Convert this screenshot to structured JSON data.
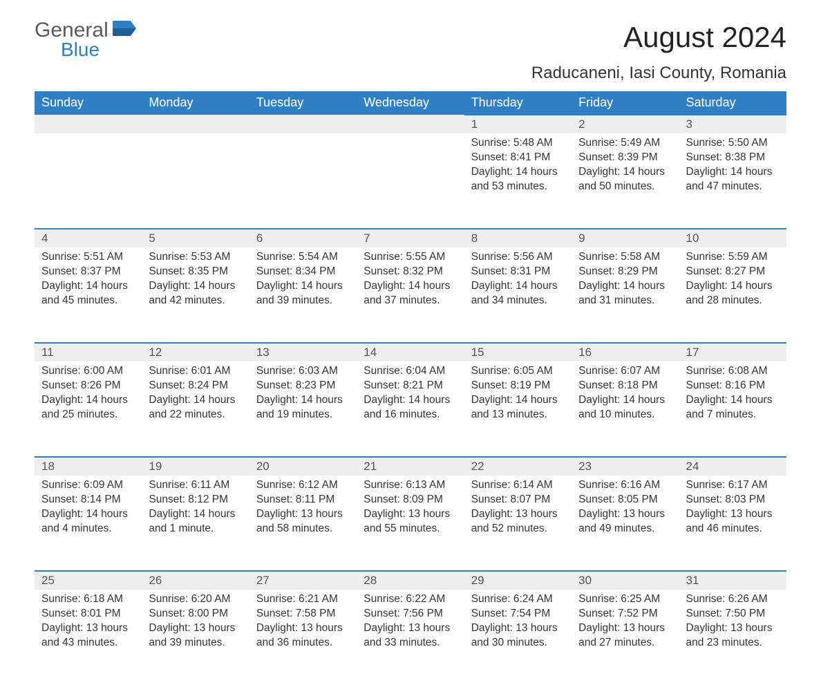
{
  "brand": {
    "part1": "General",
    "part2": "Blue"
  },
  "title": "August 2024",
  "subtitle": "Raducaneni, Iasi County, Romania",
  "colors": {
    "header_bg": "#2f7fc2",
    "header_text": "#ffffff",
    "daynum_bg": "#eeeeee",
    "border": "#2f7fc2",
    "body_text": "#333333",
    "logo_gray": "#5a5a5a",
    "logo_blue": "#2f7fc2",
    "page_bg": "#ffffff"
  },
  "typography": {
    "title_fontsize": 42,
    "subtitle_fontsize": 24,
    "header_fontsize": 18,
    "cell_fontsize": 15.5,
    "daynum_fontsize": 17,
    "font_family": "Arial"
  },
  "day_headers": [
    "Sunday",
    "Monday",
    "Tuesday",
    "Wednesday",
    "Thursday",
    "Friday",
    "Saturday"
  ],
  "weeks": [
    [
      null,
      null,
      null,
      null,
      {
        "day": "1",
        "sunrise": "Sunrise: 5:48 AM",
        "sunset": "Sunset: 8:41 PM",
        "daylight1": "Daylight: 14 hours",
        "daylight2": "and 53 minutes."
      },
      {
        "day": "2",
        "sunrise": "Sunrise: 5:49 AM",
        "sunset": "Sunset: 8:39 PM",
        "daylight1": "Daylight: 14 hours",
        "daylight2": "and 50 minutes."
      },
      {
        "day": "3",
        "sunrise": "Sunrise: 5:50 AM",
        "sunset": "Sunset: 8:38 PM",
        "daylight1": "Daylight: 14 hours",
        "daylight2": "and 47 minutes."
      }
    ],
    [
      {
        "day": "4",
        "sunrise": "Sunrise: 5:51 AM",
        "sunset": "Sunset: 8:37 PM",
        "daylight1": "Daylight: 14 hours",
        "daylight2": "and 45 minutes."
      },
      {
        "day": "5",
        "sunrise": "Sunrise: 5:53 AM",
        "sunset": "Sunset: 8:35 PM",
        "daylight1": "Daylight: 14 hours",
        "daylight2": "and 42 minutes."
      },
      {
        "day": "6",
        "sunrise": "Sunrise: 5:54 AM",
        "sunset": "Sunset: 8:34 PM",
        "daylight1": "Daylight: 14 hours",
        "daylight2": "and 39 minutes."
      },
      {
        "day": "7",
        "sunrise": "Sunrise: 5:55 AM",
        "sunset": "Sunset: 8:32 PM",
        "daylight1": "Daylight: 14 hours",
        "daylight2": "and 37 minutes."
      },
      {
        "day": "8",
        "sunrise": "Sunrise: 5:56 AM",
        "sunset": "Sunset: 8:31 PM",
        "daylight1": "Daylight: 14 hours",
        "daylight2": "and 34 minutes."
      },
      {
        "day": "9",
        "sunrise": "Sunrise: 5:58 AM",
        "sunset": "Sunset: 8:29 PM",
        "daylight1": "Daylight: 14 hours",
        "daylight2": "and 31 minutes."
      },
      {
        "day": "10",
        "sunrise": "Sunrise: 5:59 AM",
        "sunset": "Sunset: 8:27 PM",
        "daylight1": "Daylight: 14 hours",
        "daylight2": "and 28 minutes."
      }
    ],
    [
      {
        "day": "11",
        "sunrise": "Sunrise: 6:00 AM",
        "sunset": "Sunset: 8:26 PM",
        "daylight1": "Daylight: 14 hours",
        "daylight2": "and 25 minutes."
      },
      {
        "day": "12",
        "sunrise": "Sunrise: 6:01 AM",
        "sunset": "Sunset: 8:24 PM",
        "daylight1": "Daylight: 14 hours",
        "daylight2": "and 22 minutes."
      },
      {
        "day": "13",
        "sunrise": "Sunrise: 6:03 AM",
        "sunset": "Sunset: 8:23 PM",
        "daylight1": "Daylight: 14 hours",
        "daylight2": "and 19 minutes."
      },
      {
        "day": "14",
        "sunrise": "Sunrise: 6:04 AM",
        "sunset": "Sunset: 8:21 PM",
        "daylight1": "Daylight: 14 hours",
        "daylight2": "and 16 minutes."
      },
      {
        "day": "15",
        "sunrise": "Sunrise: 6:05 AM",
        "sunset": "Sunset: 8:19 PM",
        "daylight1": "Daylight: 14 hours",
        "daylight2": "and 13 minutes."
      },
      {
        "day": "16",
        "sunrise": "Sunrise: 6:07 AM",
        "sunset": "Sunset: 8:18 PM",
        "daylight1": "Daylight: 14 hours",
        "daylight2": "and 10 minutes."
      },
      {
        "day": "17",
        "sunrise": "Sunrise: 6:08 AM",
        "sunset": "Sunset: 8:16 PM",
        "daylight1": "Daylight: 14 hours",
        "daylight2": "and 7 minutes."
      }
    ],
    [
      {
        "day": "18",
        "sunrise": "Sunrise: 6:09 AM",
        "sunset": "Sunset: 8:14 PM",
        "daylight1": "Daylight: 14 hours",
        "daylight2": "and 4 minutes."
      },
      {
        "day": "19",
        "sunrise": "Sunrise: 6:11 AM",
        "sunset": "Sunset: 8:12 PM",
        "daylight1": "Daylight: 14 hours",
        "daylight2": "and 1 minute."
      },
      {
        "day": "20",
        "sunrise": "Sunrise: 6:12 AM",
        "sunset": "Sunset: 8:11 PM",
        "daylight1": "Daylight: 13 hours",
        "daylight2": "and 58 minutes."
      },
      {
        "day": "21",
        "sunrise": "Sunrise: 6:13 AM",
        "sunset": "Sunset: 8:09 PM",
        "daylight1": "Daylight: 13 hours",
        "daylight2": "and 55 minutes."
      },
      {
        "day": "22",
        "sunrise": "Sunrise: 6:14 AM",
        "sunset": "Sunset: 8:07 PM",
        "daylight1": "Daylight: 13 hours",
        "daylight2": "and 52 minutes."
      },
      {
        "day": "23",
        "sunrise": "Sunrise: 6:16 AM",
        "sunset": "Sunset: 8:05 PM",
        "daylight1": "Daylight: 13 hours",
        "daylight2": "and 49 minutes."
      },
      {
        "day": "24",
        "sunrise": "Sunrise: 6:17 AM",
        "sunset": "Sunset: 8:03 PM",
        "daylight1": "Daylight: 13 hours",
        "daylight2": "and 46 minutes."
      }
    ],
    [
      {
        "day": "25",
        "sunrise": "Sunrise: 6:18 AM",
        "sunset": "Sunset: 8:01 PM",
        "daylight1": "Daylight: 13 hours",
        "daylight2": "and 43 minutes."
      },
      {
        "day": "26",
        "sunrise": "Sunrise: 6:20 AM",
        "sunset": "Sunset: 8:00 PM",
        "daylight1": "Daylight: 13 hours",
        "daylight2": "and 39 minutes."
      },
      {
        "day": "27",
        "sunrise": "Sunrise: 6:21 AM",
        "sunset": "Sunset: 7:58 PM",
        "daylight1": "Daylight: 13 hours",
        "daylight2": "and 36 minutes."
      },
      {
        "day": "28",
        "sunrise": "Sunrise: 6:22 AM",
        "sunset": "Sunset: 7:56 PM",
        "daylight1": "Daylight: 13 hours",
        "daylight2": "and 33 minutes."
      },
      {
        "day": "29",
        "sunrise": "Sunrise: 6:24 AM",
        "sunset": "Sunset: 7:54 PM",
        "daylight1": "Daylight: 13 hours",
        "daylight2": "and 30 minutes."
      },
      {
        "day": "30",
        "sunrise": "Sunrise: 6:25 AM",
        "sunset": "Sunset: 7:52 PM",
        "daylight1": "Daylight: 13 hours",
        "daylight2": "and 27 minutes."
      },
      {
        "day": "31",
        "sunrise": "Sunrise: 6:26 AM",
        "sunset": "Sunset: 7:50 PM",
        "daylight1": "Daylight: 13 hours",
        "daylight2": "and 23 minutes."
      }
    ]
  ]
}
